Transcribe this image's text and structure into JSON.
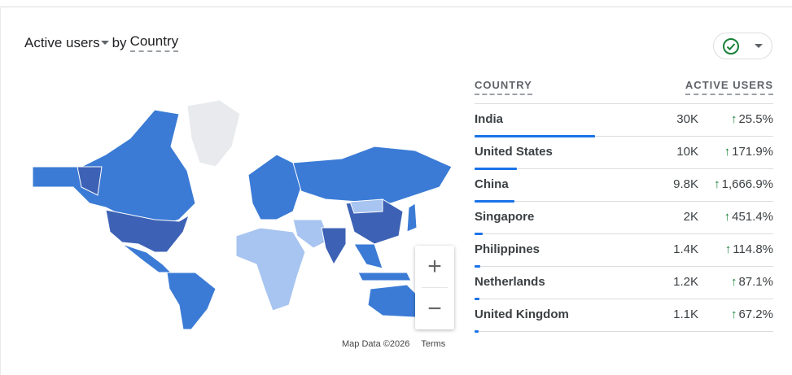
{
  "header": {
    "metric": "Active users",
    "by": "by",
    "dimension": "Country"
  },
  "status_button": {
    "icon": "check-circle-icon",
    "color": "#188038"
  },
  "table": {
    "columns": [
      "COUNTRY",
      "ACTIVE USERS"
    ],
    "rows": [
      {
        "country": "India",
        "users": "30K",
        "change": "25.5%",
        "share": 1.0
      },
      {
        "country": "United States",
        "users": "10K",
        "change": "171.9%",
        "share": 0.35
      },
      {
        "country": "China",
        "users": "9.8K",
        "change": "1,666.9%",
        "share": 0.33
      },
      {
        "country": "Singapore",
        "users": "2K",
        "change": "451.4%",
        "share": 0.07
      },
      {
        "country": "Philippines",
        "users": "1.4K",
        "change": "114.8%",
        "share": 0.05
      },
      {
        "country": "Netherlands",
        "users": "1.2K",
        "change": "87.1%",
        "share": 0.04
      },
      {
        "country": "United Kingdom",
        "users": "1.1K",
        "change": "67.2%",
        "share": 0.035
      }
    ],
    "up_arrow": "↑"
  },
  "map": {
    "zoom_in": "+",
    "zoom_out": "−",
    "attribution": "Map Data ©2026",
    "terms": "Terms",
    "colors": {
      "high": "#3d62b5",
      "mid": "#3b7bd6",
      "low": "#a8c4f0",
      "none": "#e8eaed"
    }
  }
}
